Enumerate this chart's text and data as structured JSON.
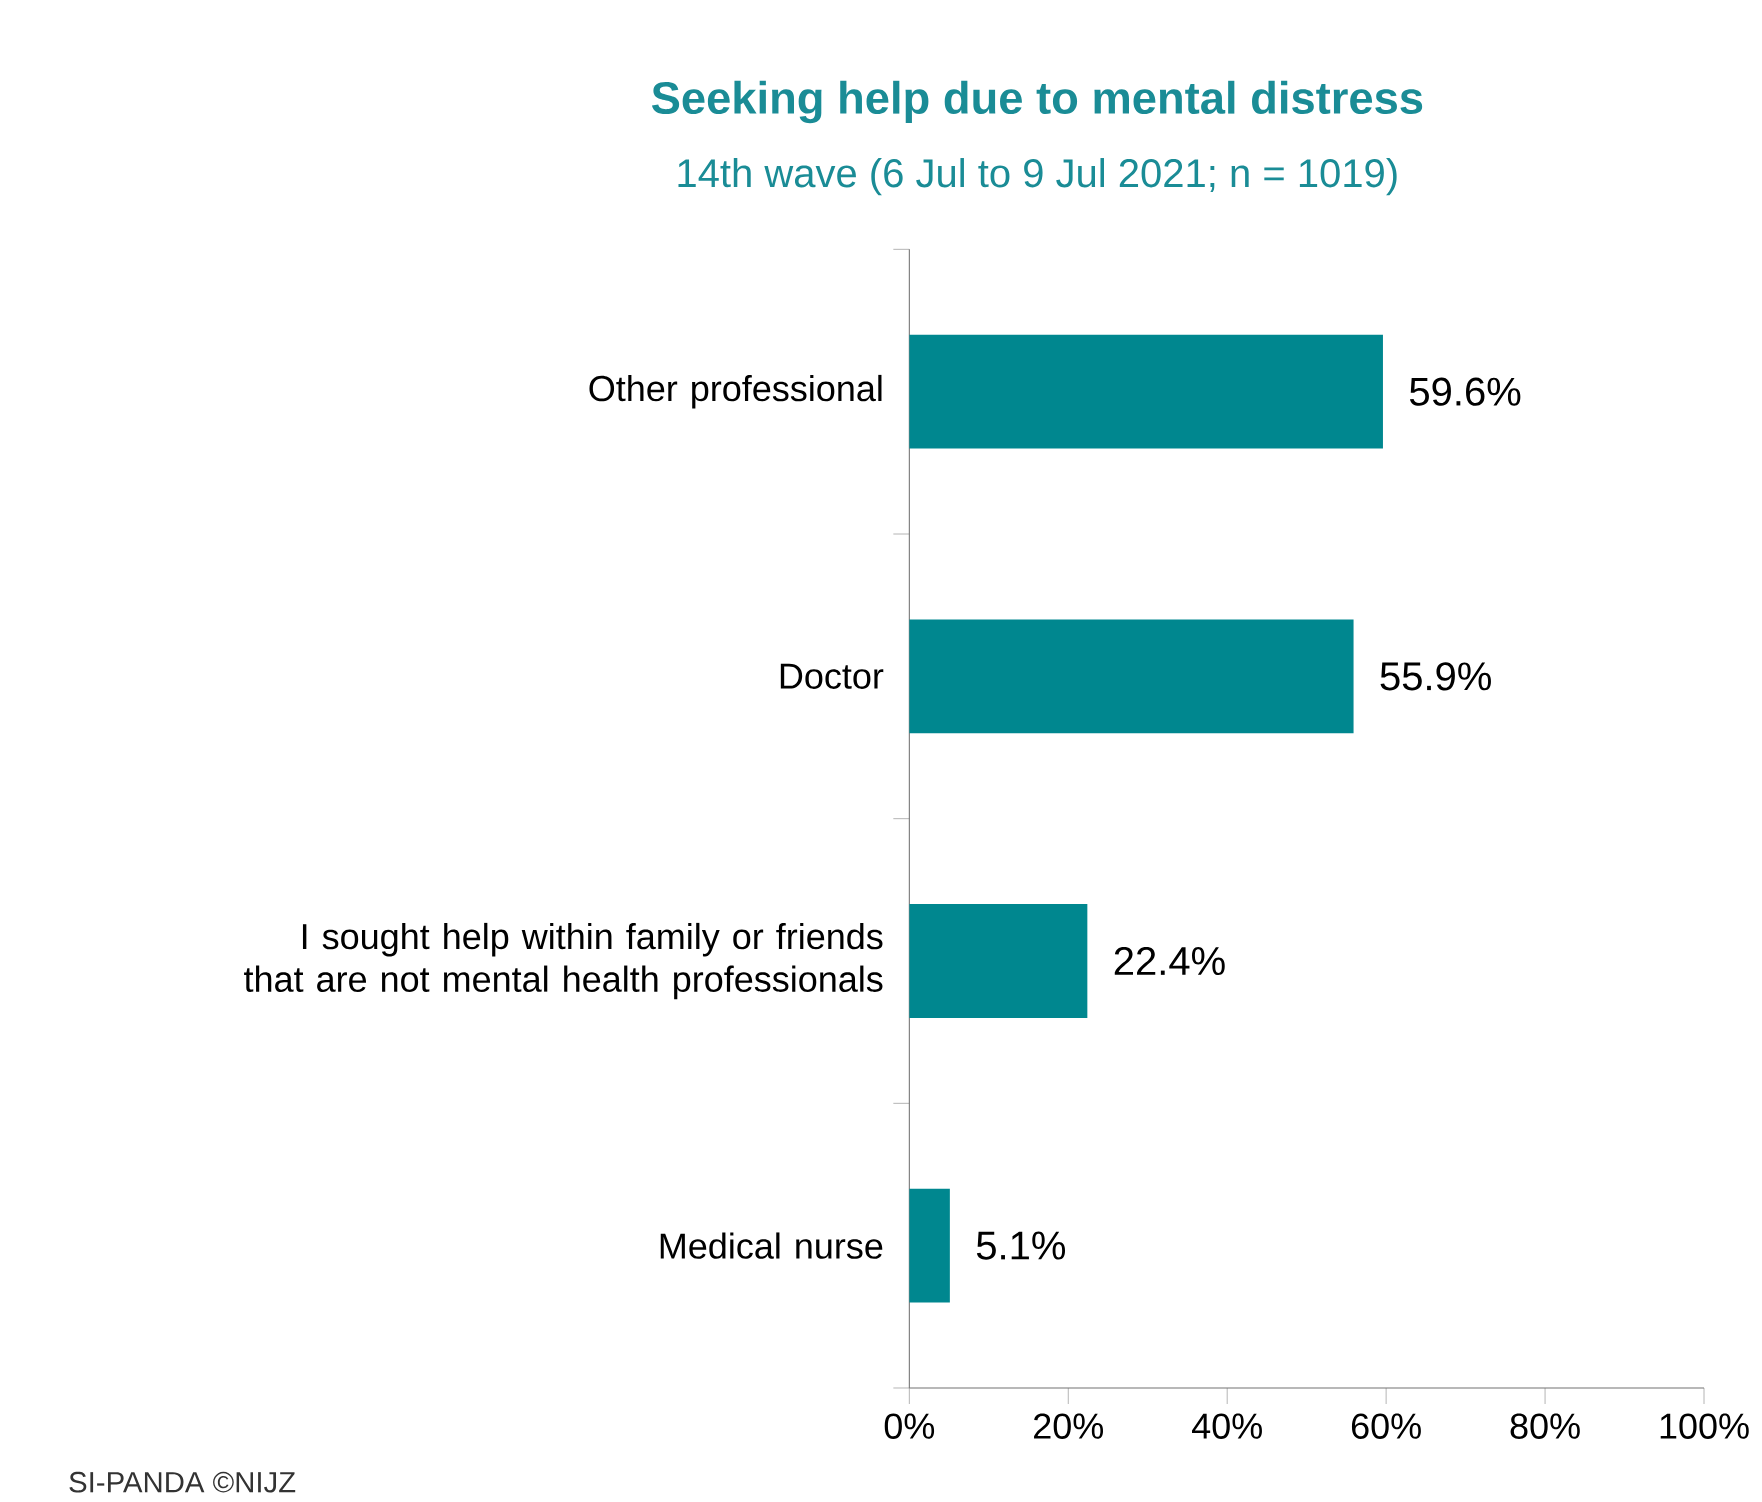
{
  "chart_data": {
    "type": "bar",
    "orientation": "horizontal",
    "title": "Seeking help due to mental distress",
    "subtitle": "14th wave (6 Jul to 9 Jul 2021; n = 1019)",
    "categories": [
      "Other professional",
      "Doctor",
      "I sought help within family or friends that are not mental health professionals",
      "Medical nurse"
    ],
    "values": [
      59.6,
      55.9,
      22.4,
      5.1
    ],
    "value_labels": [
      "59.6%",
      "55.9%",
      "22.4%",
      "5.1%"
    ],
    "color": "#00878f",
    "xlim": [
      0,
      100
    ],
    "xticks": [
      {
        "value": 0,
        "label": "0%"
      },
      {
        "value": 20,
        "label": "20%"
      },
      {
        "value": 40,
        "label": "40%"
      },
      {
        "value": 60,
        "label": "60%"
      },
      {
        "value": 80,
        "label": "80%"
      },
      {
        "value": 100,
        "label": "100%"
      }
    ],
    "grid": false,
    "annotations": [
      "SI-PANDA ©NIJZ"
    ]
  }
}
